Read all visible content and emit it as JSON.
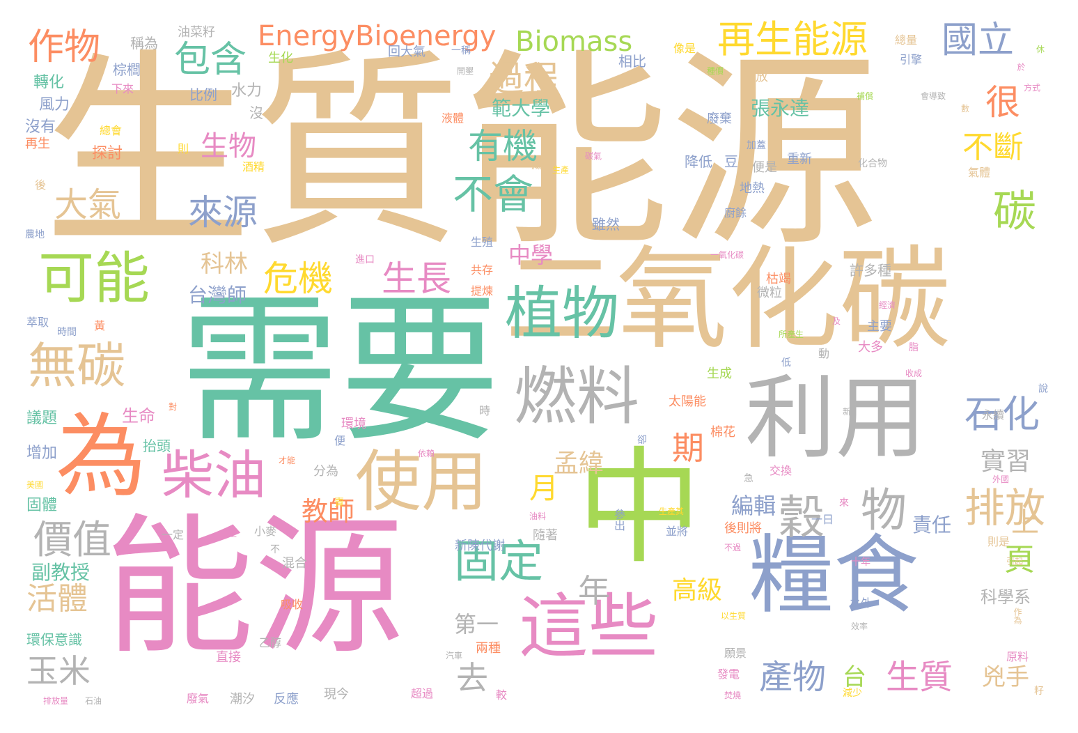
{
  "palette": {
    "tan": "#e5c494",
    "green": "#66c2a5",
    "pink": "#e78ac3",
    "lime": "#a6d854",
    "gray": "#b3b3b3",
    "blue": "#8da0cb",
    "orange": "#fc8d62",
    "yellow": "#ffd92f"
  },
  "words": [
    {
      "id": "shengzhinengyuan",
      "text": "生質能源",
      "weight": 180,
      "color": "tan"
    },
    {
      "id": "xuyao",
      "text": "需要",
      "weight": 145,
      "color": "green"
    },
    {
      "id": "nengyuan",
      "text": "能源",
      "weight": 135,
      "color": "pink"
    },
    {
      "id": "eryanghuatan",
      "text": "二氧化碳",
      "weight": 120,
      "color": "tan"
    },
    {
      "id": "zhong",
      "text": "中",
      "weight": 105,
      "color": "lime"
    },
    {
      "id": "liyong",
      "text": "利用",
      "weight": 95,
      "color": "gray"
    },
    {
      "id": "liangshi",
      "text": "糧食",
      "weight": 90,
      "color": "blue"
    },
    {
      "id": "wei",
      "text": "為",
      "weight": 90,
      "color": "orange"
    },
    {
      "id": "zhexie",
      "text": "這些",
      "weight": 75,
      "color": "pink"
    },
    {
      "id": "shiyong",
      "text": "使用",
      "weight": 70,
      "color": "tan"
    },
    {
      "id": "ranliao",
      "text": "燃料",
      "weight": 68,
      "color": "gray"
    },
    {
      "id": "zhiwu",
      "text": "植物",
      "weight": 62,
      "color": "green"
    },
    {
      "id": "keneng",
      "text": "可能",
      "weight": 60,
      "color": "lime"
    },
    {
      "id": "chaiyou",
      "text": "柴油",
      "weight": 55,
      "color": "pink"
    },
    {
      "id": "wutan",
      "text": "無碳",
      "weight": 50,
      "color": "tan"
    },
    {
      "id": "guding",
      "text": "固定",
      "weight": 48,
      "color": "green"
    },
    {
      "id": "gu",
      "text": "穀",
      "weight": 50,
      "color": "gray"
    },
    {
      "id": "wu",
      "text": "物",
      "weight": 50,
      "color": "gray"
    },
    {
      "id": "jiazhi",
      "text": "價值",
      "weight": 40,
      "color": "gray"
    },
    {
      "id": "buhui",
      "text": "不會",
      "weight": 42,
      "color": "green"
    },
    {
      "id": "tan",
      "text": "碳",
      "weight": 45,
      "color": "lime"
    },
    {
      "id": "paifang",
      "text": "排放",
      "weight": 42,
      "color": "tan"
    },
    {
      "id": "shihua",
      "text": "石化",
      "weight": 40,
      "color": "blue"
    },
    {
      "id": "youji",
      "text": "有機",
      "weight": 38,
      "color": "green"
    },
    {
      "id": "guoli",
      "text": "國立",
      "weight": 38,
      "color": "blue"
    },
    {
      "id": "zaishengnengyuan",
      "text": "再生能源",
      "weight": 38,
      "color": "yellow"
    },
    {
      "id": "wuchan",
      "text": "作物",
      "weight": 38,
      "color": "orange"
    },
    {
      "id": "baohan",
      "text": "包含",
      "weight": 38,
      "color": "green"
    },
    {
      "id": "guocheng",
      "text": "過程",
      "weight": 36,
      "color": "tan"
    },
    {
      "id": "laiyuan",
      "text": "來源",
      "weight": 36,
      "color": "blue"
    },
    {
      "id": "daqi",
      "text": "大氣",
      "weight": 34,
      "color": "tan"
    },
    {
      "id": "weiji",
      "text": "危機",
      "weight": 36,
      "color": "yellow"
    },
    {
      "id": "shengzhang",
      "text": "生長",
      "weight": 36,
      "color": "pink"
    },
    {
      "id": "energybioenergy",
      "text": "EnergyBioenergy",
      "weight": 28,
      "color": "orange"
    },
    {
      "id": "biomass",
      "text": "Biomass",
      "weight": 28,
      "color": "lime"
    },
    {
      "id": "hen",
      "text": "很",
      "weight": 36,
      "color": "orange"
    },
    {
      "id": "buduan",
      "text": "不斷",
      "weight": 34,
      "color": "yellow"
    },
    {
      "id": "shengwu",
      "text": "生物",
      "weight": 32,
      "color": "pink"
    },
    {
      "id": "huoti",
      "text": "活體",
      "weight": 34,
      "color": "tan"
    },
    {
      "id": "yumi",
      "text": "玉米",
      "weight": 36,
      "color": "gray"
    },
    {
      "id": "chanwu",
      "text": "產物",
      "weight": 36,
      "color": "blue"
    },
    {
      "id": "shengzhi",
      "text": "生質",
      "weight": 36,
      "color": "pink"
    },
    {
      "id": "qu",
      "text": "去",
      "weight": 36,
      "color": "gray"
    },
    {
      "id": "nian",
      "text": "年",
      "weight": 36,
      "color": "gray"
    },
    {
      "id": "qi",
      "text": "期",
      "weight": 34,
      "color": "orange"
    },
    {
      "id": "yue",
      "text": "月",
      "weight": 30,
      "color": "yellow"
    },
    {
      "id": "ye",
      "text": "頁",
      "weight": 32,
      "color": "lime"
    },
    {
      "id": "shang",
      "text": "上",
      "weight": 32,
      "color": "tan"
    },
    {
      "id": "tai",
      "text": "台",
      "weight": 26,
      "color": "lime"
    },
    {
      "id": "xiongshou",
      "text": "兇手",
      "weight": 26,
      "color": "tan"
    },
    {
      "id": "shixi",
      "text": "實習",
      "weight": 26,
      "color": "gray"
    },
    {
      "id": "mengwei",
      "text": "孟緯",
      "weight": 26,
      "color": "tan"
    },
    {
      "id": "jiaoshi",
      "text": "教師",
      "weight": 26,
      "color": "orange"
    },
    {
      "id": "gaoji",
      "text": "高級",
      "weight": 26,
      "color": "yellow"
    },
    {
      "id": "diyi",
      "text": "第一",
      "weight": 24,
      "color": "gray"
    },
    {
      "id": "zhongxue",
      "text": "中學",
      "weight": 24,
      "color": "pink"
    },
    {
      "id": "kelin",
      "text": "科林",
      "weight": 24,
      "color": "tan"
    },
    {
      "id": "taiwanshi",
      "text": "台灣師",
      "weight": 22,
      "color": "blue"
    },
    {
      "id": "fandaxue",
      "text": "範大學",
      "weight": 22,
      "color": "green"
    },
    {
      "id": "zhangyongda",
      "text": "張永達",
      "weight": 22,
      "color": "green"
    },
    {
      "id": "bianji",
      "text": "編輯",
      "weight": 24,
      "color": "blue"
    },
    {
      "id": "zeren",
      "text": "責任",
      "weight": 22,
      "color": "blue"
    },
    {
      "id": "fujiaoshou",
      "text": "副教授",
      "weight": 22,
      "color": "green"
    },
    {
      "id": "kexuexi",
      "text": "科學系",
      "weight": 20,
      "color": "gray"
    },
    {
      "id": "yiti",
      "text": "議題",
      "weight": 18,
      "color": "green"
    },
    {
      "id": "zengjia",
      "text": "增加",
      "weight": 18,
      "color": "blue"
    },
    {
      "id": "guti",
      "text": "固體",
      "weight": 18,
      "color": "green"
    },
    {
      "id": "huanbaoyishi",
      "text": "環保意識",
      "weight": 18,
      "color": "green"
    },
    {
      "id": "zhuanhua",
      "text": "轉化",
      "weight": 18,
      "color": "green"
    },
    {
      "id": "fengli",
      "text": "風力",
      "weight": 18,
      "color": "blue"
    },
    {
      "id": "meiyou",
      "text": "沒有",
      "weight": 18,
      "color": "blue"
    },
    {
      "id": "zaisheng",
      "text": "再生",
      "weight": 16,
      "color": "orange"
    },
    {
      "id": "shuili",
      "text": "水力",
      "weight": 18,
      "color": "gray"
    },
    {
      "id": "bili",
      "text": "比例",
      "weight": 16,
      "color": "blue"
    },
    {
      "id": "zonglv",
      "text": "棕櫚",
      "weight": 16,
      "color": "blue"
    },
    {
      "id": "chengwei",
      "text": "稱為",
      "weight": 16,
      "color": "gray"
    },
    {
      "id": "youcaizi",
      "text": "油菜籽",
      "weight": 16,
      "color": "gray"
    },
    {
      "id": "shenghua",
      "text": "生化",
      "weight": 16,
      "color": "lime"
    },
    {
      "id": "xialai",
      "text": "下來",
      "weight": 14,
      "color": "pink"
    },
    {
      "id": "zonghui",
      "text": "總會",
      "weight": 14,
      "color": "yellow"
    },
    {
      "id": "tantao",
      "text": "探討",
      "weight": 18,
      "color": "orange"
    },
    {
      "id": "huidaqi",
      "text": "回大氣",
      "weight": 16,
      "color": "blue"
    },
    {
      "id": "yicheng",
      "text": "一稱",
      "weight": 14,
      "color": "blue"
    },
    {
      "id": "xiangbi",
      "text": "相比",
      "weight": 16,
      "color": "blue"
    },
    {
      "id": "xiangshi",
      "text": "像是",
      "weight": 14,
      "color": "yellow"
    },
    {
      "id": "zongliang",
      "text": "總量",
      "weight": 14,
      "color": "tan"
    },
    {
      "id": "yinqing",
      "text": "引擎",
      "weight": 14,
      "color": "blue"
    },
    {
      "id": "shifang",
      "text": "釋放",
      "weight": 16,
      "color": "tan"
    },
    {
      "id": "feiqi2",
      "text": "廢棄",
      "weight": 16,
      "color": "blue"
    },
    {
      "id": "jiangdi",
      "text": "降低",
      "weight": 16,
      "color": "blue"
    },
    {
      "id": "dou",
      "text": "豆",
      "weight": 16,
      "color": "blue"
    },
    {
      "id": "bianshi",
      "text": "便是",
      "weight": 14,
      "color": "gray"
    },
    {
      "id": "chongxin",
      "text": "重新",
      "weight": 14,
      "color": "blue"
    },
    {
      "id": "dire",
      "text": "地熱",
      "weight": 14,
      "color": "blue"
    },
    {
      "id": "chuyu",
      "text": "廚餘",
      "weight": 14,
      "color": "blue"
    },
    {
      "id": "suiran",
      "text": "雖然",
      "weight": 16,
      "color": "blue"
    },
    {
      "id": "shengzhi2",
      "text": "生殖",
      "weight": 14,
      "color": "blue"
    },
    {
      "id": "gongcun",
      "text": "共存",
      "weight": 14,
      "color": "orange"
    },
    {
      "id": "tilian",
      "text": "提煉",
      "weight": 14,
      "color": "orange"
    },
    {
      "id": "kujie",
      "text": "枯竭",
      "weight": 16,
      "color": "orange"
    },
    {
      "id": "weili",
      "text": "微粒",
      "weight": 14,
      "color": "gray"
    },
    {
      "id": "xuduozhong",
      "text": "許多種",
      "weight": 18,
      "color": "gray"
    },
    {
      "id": "zhuyao",
      "text": "主要",
      "weight": 16,
      "color": "blue"
    },
    {
      "id": "daduo",
      "text": "大多",
      "weight": 16,
      "color": "pink"
    },
    {
      "id": "shengcheng",
      "text": "生成",
      "weight": 16,
      "color": "lime"
    },
    {
      "id": "taiyangneng",
      "text": "太陽能",
      "weight": 16,
      "color": "orange"
    },
    {
      "id": "mianhua",
      "text": "棉花",
      "weight": 16,
      "color": "orange"
    },
    {
      "id": "yongxu",
      "text": "永續",
      "weight": 14,
      "color": "gray"
    },
    {
      "id": "jiaohuan",
      "text": "交換",
      "weight": 14,
      "color": "pink"
    },
    {
      "id": "yiri",
      "text": "一日",
      "weight": 14,
      "color": "blue"
    },
    {
      "id": "houzejiang",
      "text": "後則將",
      "weight": 16,
      "color": "orange"
    },
    {
      "id": "zeshi",
      "text": "則是",
      "weight": 14,
      "color": "tan"
    },
    {
      "id": "shinian",
      "text": "十年",
      "weight": 12,
      "color": "pink"
    },
    {
      "id": "zhiwai",
      "text": "之外",
      "weight": 14,
      "color": "blue"
    },
    {
      "id": "yuanliao",
      "text": "原料",
      "weight": 14,
      "color": "pink"
    },
    {
      "id": "liangzhong",
      "text": "兩種",
      "weight": 14,
      "color": "orange"
    },
    {
      "id": "yuanjing",
      "text": "願景",
      "weight": 14,
      "color": "gray"
    },
    {
      "id": "fadian",
      "text": "發電",
      "weight": 14,
      "color": "pink"
    },
    {
      "id": "jianshao",
      "text": "減少",
      "weight": 12,
      "color": "yellow"
    },
    {
      "id": "xinchendaixie",
      "text": "新陳代謝",
      "weight": 16,
      "color": "blue"
    },
    {
      "id": "suizhe",
      "text": "隨著",
      "weight": 16,
      "color": "gray"
    },
    {
      "id": "bingjiang",
      "text": "並將",
      "weight": 14,
      "color": "blue"
    },
    {
      "id": "shengchanzhe",
      "text": "生產其",
      "weight": 12,
      "color": "yellow"
    },
    {
      "id": "canchu",
      "text": "參出",
      "weight": 14,
      "color": "blue"
    },
    {
      "id": "youliao",
      "text": "油料",
      "weight": 12,
      "color": "pink"
    },
    {
      "id": "yishang",
      "text": "以上",
      "weight": 12,
      "color": "pink"
    },
    {
      "id": "xiaomai",
      "text": "小麥",
      "weight": 14,
      "color": "gray"
    },
    {
      "id": "yiding",
      "text": "一定",
      "weight": 14,
      "color": "gray"
    },
    {
      "id": "hunhe",
      "text": "混合",
      "weight": 16,
      "color": "gray"
    },
    {
      "id": "bu",
      "text": "不",
      "weight": 14,
      "color": "gray"
    },
    {
      "id": "xishou",
      "text": "吸收",
      "weight": 14,
      "color": "orange"
    },
    {
      "id": "yichun",
      "text": "乙醇",
      "weight": 14,
      "color": "gray"
    },
    {
      "id": "zhijie",
      "text": "直接",
      "weight": 16,
      "color": "pink"
    },
    {
      "id": "qiche",
      "text": "汽車",
      "weight": 12,
      "color": "gray"
    },
    {
      "id": "chaoguo",
      "text": "超過",
      "weight": 14,
      "color": "pink"
    },
    {
      "id": "xianjin",
      "text": "現今",
      "weight": 14,
      "color": "gray"
    },
    {
      "id": "fanying",
      "text": "反應",
      "weight": 16,
      "color": "blue"
    },
    {
      "id": "chaoxi",
      "text": "潮汐",
      "weight": 16,
      "color": "gray"
    },
    {
      "id": "feiqi",
      "text": "廢氣",
      "weight": 14,
      "color": "pink"
    },
    {
      "id": "paifangliang",
      "text": "排放量",
      "weight": 12,
      "color": "pink"
    },
    {
      "id": "shiyou",
      "text": "石油",
      "weight": 12,
      "color": "gray"
    },
    {
      "id": "jiao",
      "text": "較",
      "weight": 14,
      "color": "pink"
    },
    {
      "id": "fenwei",
      "text": "分為",
      "weight": 16,
      "color": "gray"
    },
    {
      "id": "bian",
      "text": "便",
      "weight": 14,
      "color": "blue"
    },
    {
      "id": "huanjing",
      "text": "環境",
      "weight": 14,
      "color": "pink"
    },
    {
      "id": "shengming",
      "text": "生命",
      "weight": 18,
      "color": "pink"
    },
    {
      "id": "taitou",
      "text": "抬頭",
      "weight": 16,
      "color": "green"
    },
    {
      "id": "cuiqu",
      "text": "萃取",
      "weight": 16,
      "color": "blue"
    },
    {
      "id": "shijian",
      "text": "時間",
      "weight": 12,
      "color": "blue"
    },
    {
      "id": "huang",
      "text": "黃",
      "weight": 14,
      "color": "orange"
    },
    {
      "id": "jiujing",
      "text": "酒精",
      "weight": 14,
      "color": "yellow"
    },
    {
      "id": "ze",
      "text": "則",
      "weight": 14,
      "color": "yellow"
    },
    {
      "id": "nongdi",
      "text": "農地",
      "weight": 12,
      "color": "blue"
    },
    {
      "id": "hou",
      "text": "後",
      "weight": 14,
      "color": "tan"
    },
    {
      "id": "jinkou",
      "text": "進口",
      "weight": 12,
      "color": "pink"
    },
    {
      "id": "yeti",
      "text": "液體",
      "weight": 14,
      "color": "orange"
    },
    {
      "id": "jiansheng",
      "text": "減產",
      "weight": 12,
      "color": "tan"
    },
    {
      "id": "shengchan",
      "text": "生產",
      "weight": 12,
      "color": "yellow"
    },
    {
      "id": "tanqi",
      "text": "碳氣",
      "weight": 12,
      "color": "pink"
    },
    {
      "id": "jiaxu",
      "text": "加蓋",
      "weight": 12,
      "color": "blue"
    },
    {
      "id": "huahewu",
      "text": "化合物",
      "weight": 12,
      "color": "gray"
    },
    {
      "id": "qiti",
      "text": "氣體",
      "weight": 14,
      "color": "tan"
    },
    {
      "id": "shu",
      "text": "數",
      "weight": 12,
      "color": "tan"
    },
    {
      "id": "huidaozhi",
      "text": "會導致",
      "weight": 12,
      "color": "gray"
    },
    {
      "id": "fangshi",
      "text": "方式",
      "weight": 12,
      "color": "pink"
    },
    {
      "id": "yu",
      "text": "於",
      "weight": 12,
      "color": "pink"
    },
    {
      "id": "xiu",
      "text": "休",
      "weight": 12,
      "color": "lime"
    },
    {
      "id": "zhongjia",
      "text": "種價",
      "weight": 12,
      "color": "lime"
    },
    {
      "id": "bujia",
      "text": "補償",
      "weight": 12,
      "color": "lime"
    },
    {
      "id": "mei",
      "text": "沒",
      "weight": 16,
      "color": "gray"
    },
    {
      "id": "kaifa",
      "text": "開墾",
      "weight": 12,
      "color": "gray"
    },
    {
      "id": "yiyanghuatan",
      "text": "一氧化碳",
      "weight": 12,
      "color": "pink"
    },
    {
      "id": "jingji",
      "text": "經濟",
      "weight": 12,
      "color": "pink"
    },
    {
      "id": "suochansheng",
      "text": "所產生",
      "weight": 12,
      "color": "lime"
    },
    {
      "id": "ji",
      "text": "及",
      "weight": 12,
      "color": "pink"
    },
    {
      "id": "zhi",
      "text": "脂",
      "weight": 12,
      "color": "pink"
    },
    {
      "id": "shouchen",
      "text": "收成",
      "weight": 12,
      "color": "pink"
    },
    {
      "id": "di",
      "text": "低",
      "weight": 12,
      "color": "blue"
    },
    {
      "id": "dong",
      "text": "動",
      "weight": 14,
      "color": "gray"
    },
    {
      "id": "shuo",
      "text": "說",
      "weight": 14,
      "color": "blue"
    },
    {
      "id": "xin",
      "text": "新",
      "weight": 12,
      "color": "gray"
    },
    {
      "id": "jiyao",
      "text": "急",
      "weight": 14,
      "color": "gray"
    },
    {
      "id": "lai",
      "text": "來",
      "weight": 14,
      "color": "pink"
    },
    {
      "id": "yilai",
      "text": "依賴",
      "weight": 12,
      "color": "pink"
    },
    {
      "id": "que",
      "text": "卻",
      "weight": 12,
      "color": "blue"
    },
    {
      "id": "meiguo",
      "text": "美國",
      "weight": 12,
      "color": "yellow"
    },
    {
      "id": "caineng",
      "text": "才能",
      "weight": 12,
      "color": "orange"
    },
    {
      "id": "shi",
      "text": "時",
      "weight": 14,
      "color": "gray"
    },
    {
      "id": "dui",
      "text": "對",
      "weight": 12,
      "color": "orange"
    },
    {
      "id": "waiguo",
      "text": "外國",
      "weight": 12,
      "color": "pink"
    },
    {
      "id": "buguo",
      "text": "不過",
      "weight": 12,
      "color": "pink"
    },
    {
      "id": "yinqi",
      "text": "引起",
      "weight": 12,
      "color": "tan"
    },
    {
      "id": "yishengzhi",
      "text": "以生質",
      "weight": 12,
      "color": "yellow"
    },
    {
      "id": "zuowei",
      "text": "作為",
      "weight": 12,
      "color": "tan"
    },
    {
      "id": "xiaolv",
      "text": "效率",
      "weight": 12,
      "color": "gray"
    },
    {
      "id": "fenshao",
      "text": "焚燒",
      "weight": 12,
      "color": "pink"
    },
    {
      "id": "zi",
      "text": "籽",
      "weight": 14,
      "color": "tan"
    },
    {
      "id": "mai",
      "text": "賣",
      "weight": 14,
      "color": "yellow"
    }
  ]
}
